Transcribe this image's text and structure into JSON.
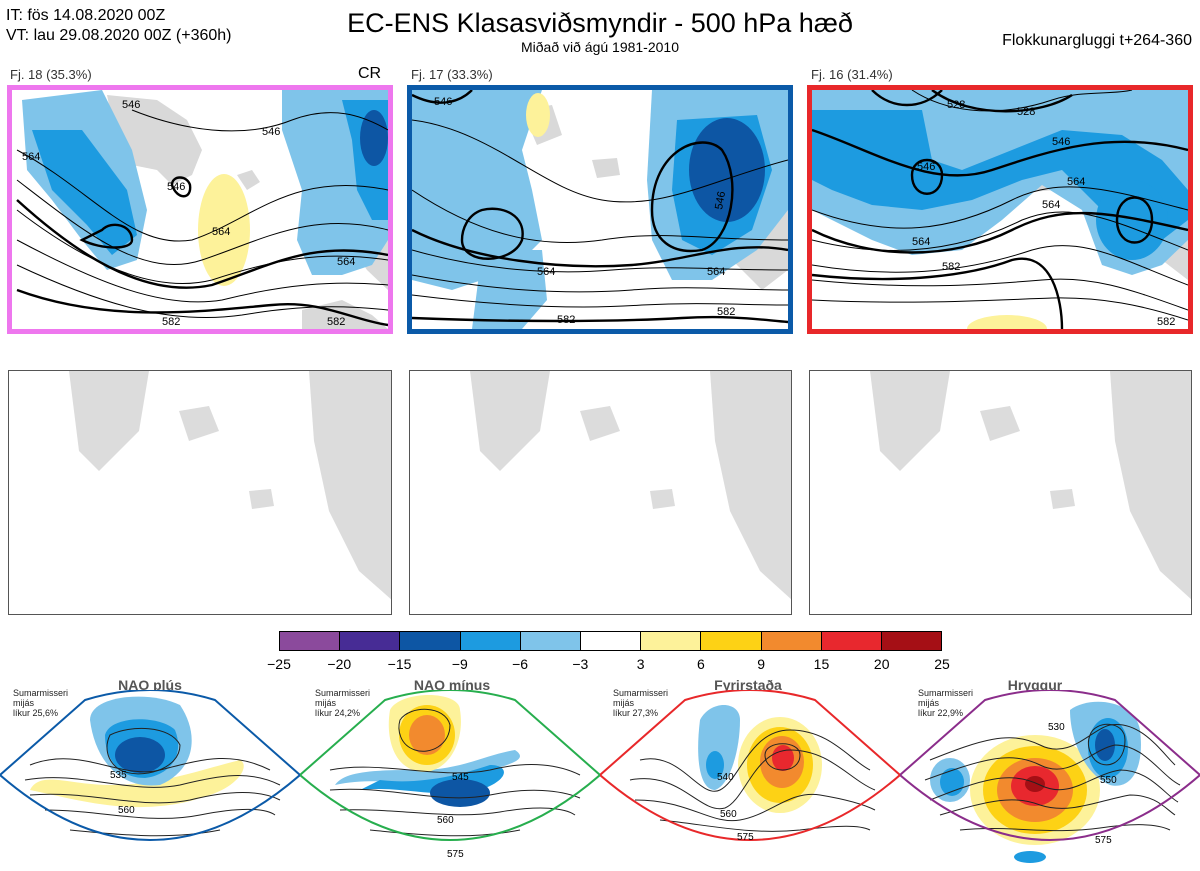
{
  "header": {
    "it_line": "IT: fös 14.08.2020 00Z",
    "vt_line": "VT: lau 29.08.2020 00Z  (+360h)",
    "title": "EC-ENS Klasasviðsmyndir - 500 hPa hæð",
    "subtitle": "Miðað við ágú 1981-2010",
    "window": "Flokkunargluggi t+264-360"
  },
  "panels": [
    {
      "label": "Fj. 18 (35.3%)",
      "tag": "CR",
      "border_color": "#ee77ee",
      "contour_labels": [
        "546",
        "546",
        "564",
        "564",
        "564",
        "582",
        "582",
        "546"
      ]
    },
    {
      "label": "Fj. 17 (33.3%)",
      "tag": "",
      "border_color": "#0b5aa8",
      "contour_labels": [
        "546",
        "564",
        "546",
        "564",
        "582",
        "582"
      ]
    },
    {
      "label": "Fj. 16 (31.4%)",
      "tag": "",
      "border_color": "#e8282a",
      "contour_labels": [
        "528",
        "528",
        "546",
        "546",
        "564",
        "564",
        "582",
        "582",
        "564"
      ]
    }
  ],
  "colorbar": {
    "colors": [
      "#8b4a9c",
      "#472c95",
      "#0d56a4",
      "#1d9be0",
      "#7fc4ea",
      "#ffffff",
      "#fdf29a",
      "#fdd215",
      "#f28a2e",
      "#e8282e",
      "#a50f15"
    ],
    "ticks": [
      "−25",
      "−20",
      "−15",
      "−9",
      "−6",
      "−3",
      "3",
      "6",
      "9",
      "15",
      "20",
      "25"
    ]
  },
  "regimes": [
    {
      "name": "NAO plús",
      "info": [
        "Sumarmisseri",
        "mijás",
        "líkur 25,6%"
      ],
      "dot_color": "#0b5aa8",
      "border_color": "#0b5aa8",
      "contour_labels": [
        "535",
        "560"
      ]
    },
    {
      "name": "NAO mínus",
      "info": [
        "Sumarmisseri",
        "mijás",
        "líkur 24,2%"
      ],
      "dot_color": "#27ae4e",
      "border_color": "#27ae4e",
      "contour_labels": [
        "545",
        "560",
        "575"
      ]
    },
    {
      "name": "Fyrirstaða",
      "info": [
        "Sumarmisseri",
        "mijás",
        "líkur 27,3%"
      ],
      "dot_color": "#e8282a",
      "border_color": "#e8282a",
      "contour_labels": [
        "540",
        "560",
        "575"
      ]
    },
    {
      "name": "Hryggur",
      "info": [
        "Sumarmisseri",
        "mijás",
        "líkur 22,9%"
      ],
      "dot_color": "#ee77ee",
      "border_color": "#8b2d8b",
      "contour_labels": [
        "530",
        "550",
        "575"
      ]
    }
  ]
}
